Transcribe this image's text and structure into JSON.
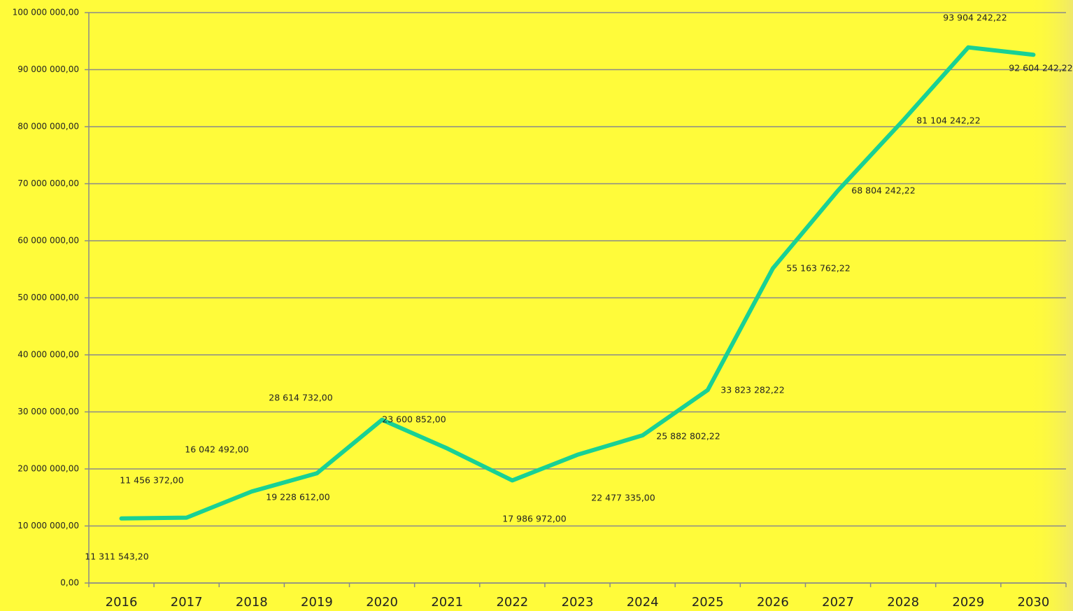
{
  "chart_data": {
    "type": "line",
    "categories": [
      "2016",
      "2017",
      "2018",
      "2019",
      "2020",
      "2021",
      "2022",
      "2023",
      "2024",
      "2025",
      "2026",
      "2027",
      "2028",
      "2029",
      "2030"
    ],
    "series": [
      {
        "color": "#18d195",
        "values": [
          11311543.2,
          11456372.0,
          16042492.0,
          19228612.0,
          28614732.0,
          23600852.0,
          17986972.0,
          22477335.0,
          25882802.22,
          33823282.22,
          55163762.22,
          68804242.22,
          81104242.22,
          93904242.22,
          92604242.22
        ],
        "value_labels": [
          "11 311 543,20",
          "11 456 372,00",
          "16 042 492,00",
          "19 228 612,00",
          "28 614 732,00",
          "23 600 852,00",
          "17 986 972,00",
          "22 477 335,00",
          "25 882 802,22",
          "33 823 282,22",
          "55 163 762,22",
          "68 804 242,22",
          "81 104 242,22",
          "93 904 242,22",
          "92 604 242,22"
        ]
      }
    ],
    "ylim": [
      0,
      100000000
    ],
    "yticks": [
      {
        "value": 0,
        "label": "0,00"
      },
      {
        "value": 10000000,
        "label": "10 000 000,00"
      },
      {
        "value": 20000000,
        "label": "20 000 000,00"
      },
      {
        "value": 30000000,
        "label": "30 000 000,00"
      },
      {
        "value": 40000000,
        "label": "40 000 000,00"
      },
      {
        "value": 50000000,
        "label": "50 000 000,00"
      },
      {
        "value": 60000000,
        "label": "60 000 000,00"
      },
      {
        "value": 70000000,
        "label": "70 000 000,00"
      },
      {
        "value": 80000000,
        "label": "80 000 000,00"
      },
      {
        "value": 90000000,
        "label": "90 000 000,00"
      },
      {
        "value": 100000000,
        "label": "100 000 000,00"
      }
    ],
    "grid": true,
    "background": "#fffb3a"
  }
}
